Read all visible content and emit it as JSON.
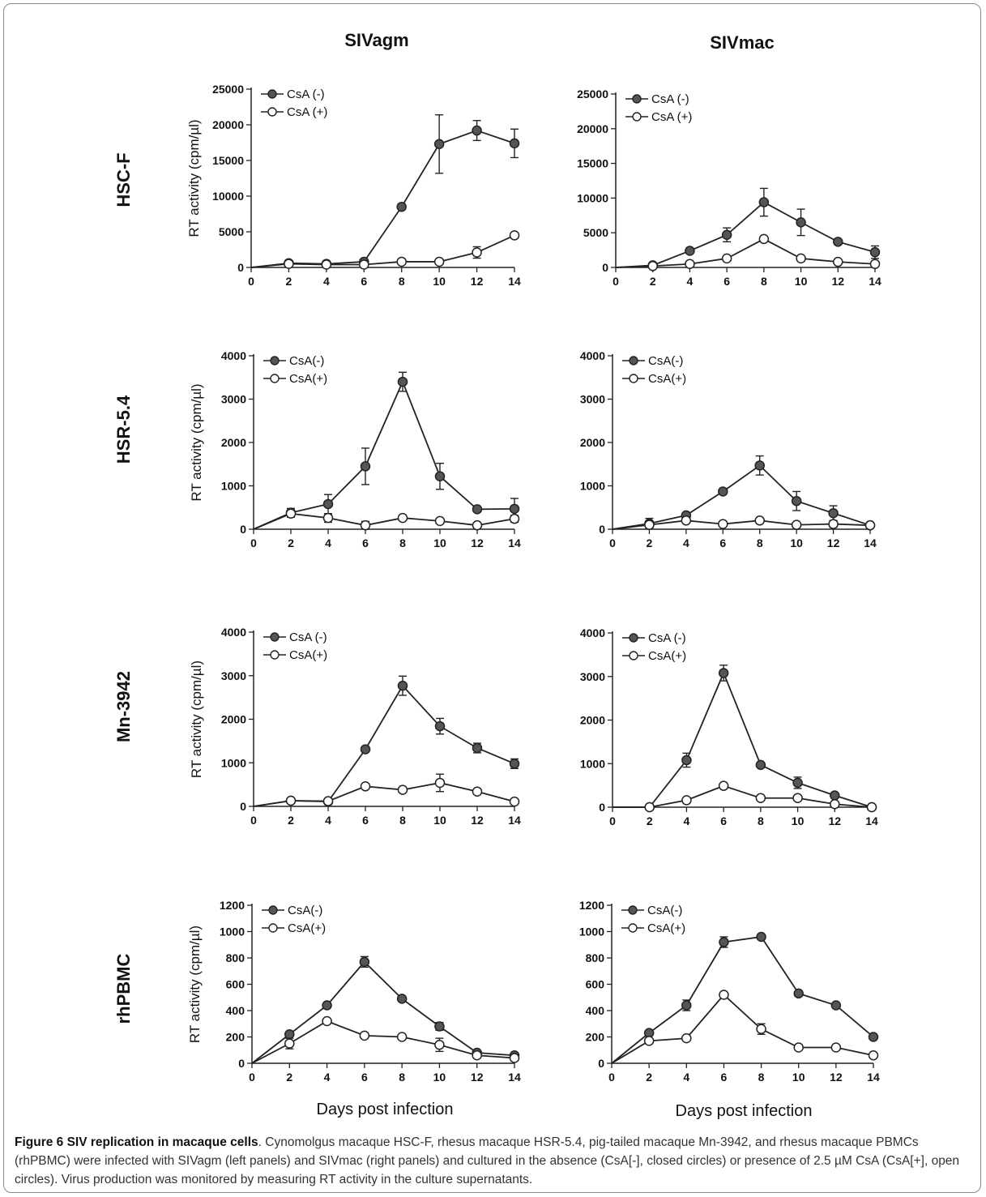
{
  "column_titles": [
    "SIVagm",
    "SIVmac"
  ],
  "row_labels": [
    "HSC-F",
    "HSR-5.4",
    "Mn-3942",
    "rhPBMC"
  ],
  "x_axis_label": "Days post infection",
  "caption": {
    "bold": "Figure 6 SIV replication in macaque cells",
    "text": ". Cynomolgus macaque HSC-F, rhesus macaque HSR-5.4, pig-tailed macaque Mn-3942, and rhesus macaque PBMCs (rhPBMC) were infected with SIVagm (left panels) and SIVmac (right panels) and cultured in the absence (CsA[-], closed circles) or presence of 2.5 µM CsA (CsA[+], open circles). Virus production was monitored by measuring RT activity in the culture supernatants."
  },
  "colors": {
    "closed": "#555555",
    "open": "#ffffff",
    "line": "#222222"
  },
  "chart_data": [
    {
      "id": "hscf-agm",
      "type": "line",
      "ylabel": "RT activity (cpm/µl)",
      "xlim": [
        0,
        14
      ],
      "ylim": [
        0,
        25000
      ],
      "xticks": [
        0,
        2,
        4,
        6,
        8,
        10,
        12,
        14
      ],
      "yticks": [
        0,
        5000,
        10000,
        15000,
        20000,
        25000
      ],
      "x": [
        0,
        2,
        4,
        6,
        8,
        10,
        12,
        14
      ],
      "series": [
        {
          "name": "CsA (-)",
          "marker": "closed",
          "values": [
            0,
            600,
            500,
            800,
            8500,
            17300,
            19200,
            17400
          ],
          "err": [
            0,
            0,
            0,
            0,
            300,
            4100,
            1400,
            2000
          ]
        },
        {
          "name": "CsA (+)",
          "marker": "open",
          "values": [
            0,
            500,
            400,
            400,
            800,
            800,
            2100,
            4500
          ],
          "err": [
            0,
            0,
            0,
            0,
            0,
            0,
            800,
            0
          ]
        }
      ]
    },
    {
      "id": "hscf-mac",
      "type": "line",
      "ylabel": "",
      "xlim": [
        0,
        14
      ],
      "ylim": [
        0,
        25000
      ],
      "xticks": [
        0,
        2,
        4,
        6,
        8,
        10,
        12,
        14
      ],
      "yticks": [
        0,
        5000,
        10000,
        15000,
        20000,
        25000
      ],
      "x": [
        0,
        2,
        4,
        6,
        8,
        10,
        12,
        14
      ],
      "series": [
        {
          "name": "CsA (-)",
          "marker": "closed",
          "values": [
            0,
            300,
            2400,
            4700,
            9400,
            6500,
            3700,
            2200
          ],
          "err": [
            0,
            0,
            0,
            1000,
            2000,
            1900,
            0,
            900
          ]
        },
        {
          "name": "CsA (+)",
          "marker": "open",
          "values": [
            0,
            200,
            500,
            1300,
            4100,
            1300,
            800,
            500
          ],
          "err": [
            0,
            0,
            0,
            0,
            0,
            0,
            0,
            0
          ]
        }
      ]
    },
    {
      "id": "hsr-agm",
      "type": "line",
      "ylabel": "RT activity (cpm/µl)",
      "xlim": [
        0,
        14
      ],
      "ylim": [
        0,
        4000
      ],
      "xticks": [
        0,
        2,
        4,
        6,
        8,
        10,
        12,
        14
      ],
      "yticks": [
        0,
        1000,
        2000,
        3000,
        4000
      ],
      "x": [
        0,
        2,
        4,
        6,
        8,
        10,
        12,
        14
      ],
      "series": [
        {
          "name": "CsA(-)",
          "marker": "closed",
          "values": [
            0,
            380,
            580,
            1450,
            3400,
            1220,
            460,
            470
          ],
          "err": [
            0,
            100,
            220,
            420,
            220,
            300,
            0,
            240
          ]
        },
        {
          "name": "CsA(+)",
          "marker": "open",
          "values": [
            0,
            360,
            260,
            90,
            260,
            190,
            90,
            240
          ],
          "err": [
            0,
            80,
            100,
            90,
            0,
            0,
            0,
            80
          ]
        }
      ]
    },
    {
      "id": "hsr-mac",
      "type": "line",
      "ylabel": "",
      "xlim": [
        0,
        14
      ],
      "ylim": [
        0,
        4000
      ],
      "xticks": [
        0,
        2,
        4,
        6,
        8,
        10,
        12,
        14
      ],
      "yticks": [
        0,
        1000,
        2000,
        3000,
        4000
      ],
      "x": [
        0,
        2,
        4,
        6,
        8,
        10,
        12,
        14
      ],
      "series": [
        {
          "name": "CsA(-)",
          "marker": "closed",
          "values": [
            0,
            130,
            320,
            870,
            1470,
            650,
            370,
            90
          ],
          "err": [
            0,
            120,
            0,
            0,
            220,
            220,
            170,
            0
          ]
        },
        {
          "name": "CsA(+)",
          "marker": "open",
          "values": [
            0,
            100,
            200,
            120,
            200,
            100,
            120,
            90
          ],
          "err": [
            0,
            80,
            0,
            0,
            0,
            0,
            80,
            0
          ]
        }
      ]
    },
    {
      "id": "mn-agm",
      "type": "line",
      "ylabel": "RT activity (cpm/µl)",
      "xlim": [
        0,
        14
      ],
      "ylim": [
        0,
        4000
      ],
      "xticks": [
        0,
        2,
        4,
        6,
        8,
        10,
        12,
        14
      ],
      "yticks": [
        0,
        1000,
        2000,
        3000,
        4000
      ],
      "x": [
        0,
        2,
        4,
        6,
        8,
        10,
        12,
        14
      ],
      "series": [
        {
          "name": "CsA (-)",
          "marker": "closed",
          "values": [
            0,
            130,
            110,
            1310,
            2770,
            1840,
            1340,
            980
          ],
          "err": [
            0,
            0,
            0,
            0,
            220,
            180,
            110,
            110
          ]
        },
        {
          "name": "CsA(+)",
          "marker": "open",
          "values": [
            0,
            130,
            120,
            460,
            380,
            540,
            340,
            110
          ],
          "err": [
            0,
            0,
            0,
            0,
            0,
            200,
            0,
            0
          ]
        }
      ]
    },
    {
      "id": "mn-mac",
      "type": "line",
      "ylabel": "",
      "xlim": [
        0,
        14
      ],
      "ylim": [
        0,
        4000
      ],
      "xticks": [
        0,
        2,
        4,
        6,
        8,
        10,
        12,
        14
      ],
      "yticks": [
        0,
        1000,
        2000,
        3000,
        4000
      ],
      "x": [
        0,
        2,
        4,
        6,
        8,
        10,
        12,
        14
      ],
      "series": [
        {
          "name": "CsA (-)",
          "marker": "closed",
          "values": [
            0,
            0,
            1080,
            3080,
            970,
            560,
            270,
            0
          ],
          "err": [
            0,
            0,
            160,
            180,
            0,
            130,
            0,
            0
          ]
        },
        {
          "name": "CsA(+)",
          "marker": "open",
          "values": [
            0,
            0,
            160,
            490,
            210,
            210,
            70,
            0
          ],
          "err": [
            0,
            0,
            0,
            0,
            0,
            0,
            0,
            0
          ]
        }
      ]
    },
    {
      "id": "rh-agm",
      "type": "line",
      "ylabel": "RT activity (cpm/µl)",
      "xlim": [
        0,
        14
      ],
      "ylim": [
        0,
        1200
      ],
      "xticks": [
        0,
        2,
        4,
        6,
        8,
        10,
        12,
        14
      ],
      "yticks": [
        0,
        200,
        400,
        600,
        800,
        1000,
        1200
      ],
      "x": [
        0,
        2,
        4,
        6,
        8,
        10,
        12,
        14
      ],
      "series": [
        {
          "name": "CsA(-)",
          "marker": "closed",
          "values": [
            0,
            220,
            440,
            770,
            490,
            280,
            80,
            60
          ],
          "err": [
            0,
            0,
            0,
            40,
            0,
            30,
            0,
            0
          ]
        },
        {
          "name": "CsA(+)",
          "marker": "open",
          "values": [
            0,
            150,
            320,
            210,
            200,
            140,
            60,
            40
          ],
          "err": [
            0,
            40,
            0,
            0,
            0,
            50,
            0,
            0
          ]
        }
      ]
    },
    {
      "id": "rh-mac",
      "type": "line",
      "ylabel": "",
      "xlim": [
        0,
        14
      ],
      "ylim": [
        0,
        1200
      ],
      "xticks": [
        0,
        2,
        4,
        6,
        8,
        10,
        12,
        14
      ],
      "yticks": [
        0,
        200,
        400,
        600,
        800,
        1000,
        1200
      ],
      "x": [
        0,
        2,
        4,
        6,
        8,
        10,
        12,
        14
      ],
      "series": [
        {
          "name": "CsA(-)",
          "marker": "closed",
          "values": [
            0,
            230,
            440,
            920,
            960,
            530,
            440,
            200
          ],
          "err": [
            0,
            0,
            40,
            40,
            0,
            0,
            0,
            0
          ]
        },
        {
          "name": "CsA(+)",
          "marker": "open",
          "values": [
            0,
            170,
            190,
            520,
            260,
            120,
            120,
            60
          ],
          "err": [
            0,
            0,
            0,
            0,
            40,
            0,
            0,
            0
          ]
        }
      ]
    }
  ]
}
